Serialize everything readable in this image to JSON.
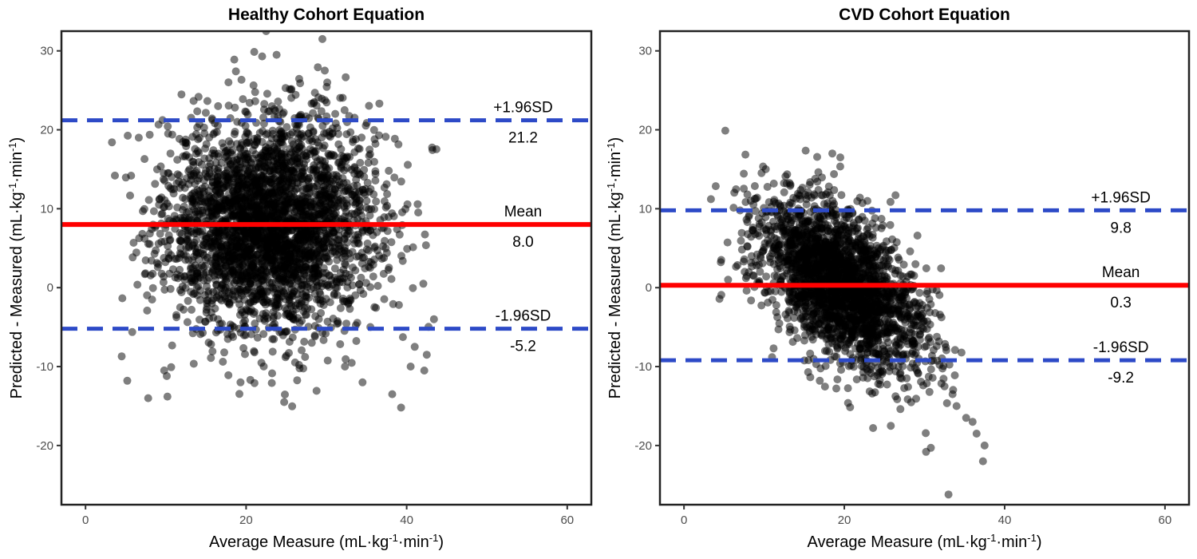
{
  "chart_data": [
    {
      "type": "scatter",
      "title": "Healthy Cohort Equation",
      "xlabel": "Average Measure (mL·kg⁻¹·min⁻¹)",
      "ylabel": "Predicted - Measured (mL·kg⁻¹·min⁻¹)",
      "xlim": [
        -3,
        63
      ],
      "ylim": [
        -27.5,
        32.5
      ],
      "x_ticks": [
        0,
        20,
        40,
        60
      ],
      "y_ticks": [
        -20,
        -10,
        0,
        10,
        20,
        30
      ],
      "grid": false,
      "point_color": "#000000",
      "cloud": {
        "x_mean": 23,
        "x_sd": 6.6,
        "y_mean": 8.0,
        "y_sd": 6.7,
        "n": 3200
      },
      "points": [
        [
          22.5,
          32.5
        ],
        [
          29.5,
          31.5
        ],
        [
          23.8,
          29.5
        ],
        [
          22.0,
          29.3
        ],
        [
          29.8,
          27.5
        ],
        [
          4.5,
          -8.7
        ],
        [
          5.2,
          -11.8
        ],
        [
          7.8,
          -14.0
        ],
        [
          10.2,
          -13.8
        ],
        [
          19.3,
          -12.0
        ],
        [
          34.5,
          -12.0
        ],
        [
          38.2,
          -13.5
        ],
        [
          39.3,
          -15.2
        ],
        [
          42.2,
          -10.5
        ],
        [
          43.4,
          -4.0
        ],
        [
          41.0,
          -7.5
        ],
        [
          42.5,
          -8.5
        ],
        [
          40.5,
          -10.0
        ]
      ],
      "lines": [
        {
          "name": "+1.96SD",
          "label": "+1.96SD",
          "value_label": "21.2",
          "value": 21.2,
          "style": "dashed",
          "color": "#2d4ac7"
        },
        {
          "name": "Mean",
          "label": "Mean",
          "value_label": "8.0",
          "value": 8.0,
          "style": "solid",
          "color": "#ff0000"
        },
        {
          "name": "-1.96SD",
          "label": "-1.96SD",
          "value_label": "-5.2",
          "value": -5.2,
          "style": "dashed",
          "color": "#2d4ac7"
        }
      ]
    },
    {
      "type": "scatter",
      "title": "CVD Cohort Equation",
      "xlabel": "Average Measure (mL·kg⁻¹·min⁻¹)",
      "ylabel": "Predicted - Measured (mL·kg⁻¹·min⁻¹)",
      "xlim": [
        -3,
        63
      ],
      "ylim": [
        -27.5,
        32.5
      ],
      "x_ticks": [
        0,
        20,
        40,
        60
      ],
      "y_ticks": [
        -20,
        -10,
        0,
        10,
        20,
        30
      ],
      "grid": false,
      "point_color": "#000000",
      "cloud": {
        "x_mean": 19.5,
        "x_sd": 5.2,
        "y_mean": 0.3,
        "y_sd": 4.7,
        "n": 2500,
        "slope": -0.55
      },
      "points": [
        [
          5.5,
          1.0
        ],
        [
          18.5,
          17.0
        ],
        [
          19.5,
          16.5
        ],
        [
          25.8,
          -17.5
        ],
        [
          30.2,
          -20.8
        ],
        [
          30.8,
          -20.3
        ],
        [
          33.0,
          -26.2
        ],
        [
          37.3,
          -22.0
        ],
        [
          37.5,
          -20.0
        ],
        [
          36.5,
          -18.5
        ],
        [
          35.2,
          -16.5
        ],
        [
          36.0,
          -17.0
        ],
        [
          34.0,
          -15.0
        ],
        [
          33.5,
          -13.5
        ],
        [
          32.5,
          -12.5
        ]
      ],
      "lines": [
        {
          "name": "+1.96SD",
          "label": "+1.96SD",
          "value_label": "9.8",
          "value": 9.8,
          "style": "dashed",
          "color": "#2d4ac7"
        },
        {
          "name": "Mean",
          "label": "Mean",
          "value_label": "0.3",
          "value": 0.3,
          "style": "solid",
          "color": "#ff0000"
        },
        {
          "name": "-1.96SD",
          "label": "-1.96SD",
          "value_label": "-9.2",
          "value": -9.2,
          "style": "dashed",
          "color": "#2d4ac7"
        }
      ]
    }
  ]
}
